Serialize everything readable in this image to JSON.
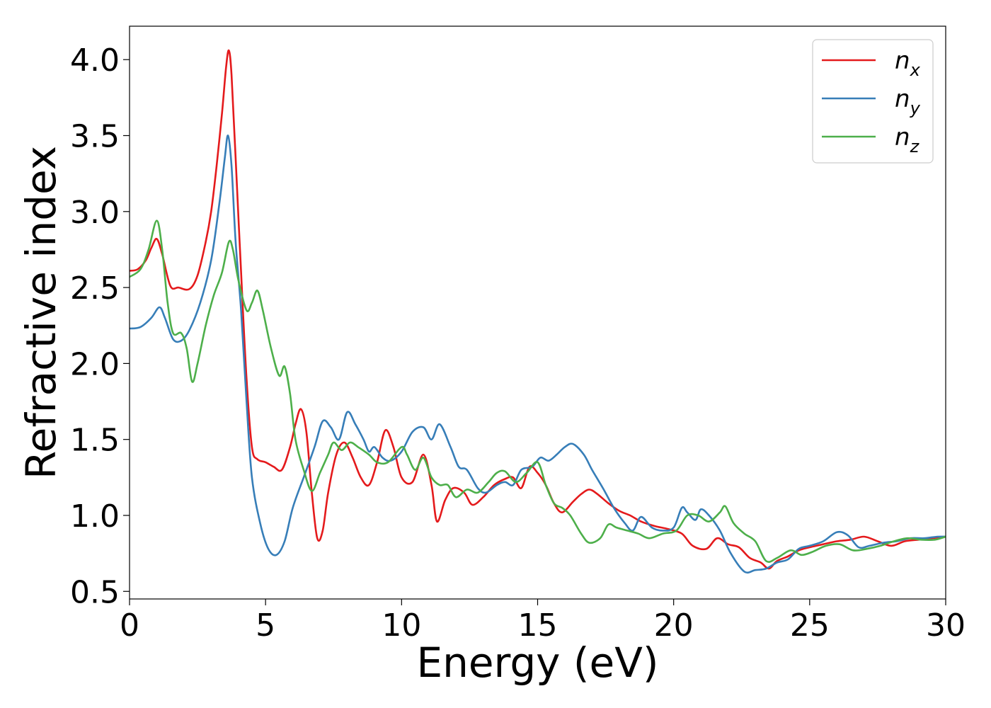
{
  "chart_data": {
    "type": "line",
    "title": "",
    "xlabel": "Energy (eV)",
    "ylabel": "Refractive index",
    "xlim": [
      0,
      30
    ],
    "ylim": [
      0.45,
      4.22
    ],
    "x_ticks": [
      "0",
      "5",
      "10",
      "15",
      "20",
      "25",
      "30"
    ],
    "y_ticks": [
      "0.5",
      "1.0",
      "1.5",
      "2.0",
      "2.5",
      "3.0",
      "3.5",
      "4.0"
    ],
    "grid": false,
    "legend_position": "top-right",
    "series": [
      {
        "name": "n_x",
        "legend_base": "n",
        "legend_sub": "x",
        "color": "#e41a1c",
        "points": [
          [
            0,
            2.61
          ],
          [
            0.3,
            2.62
          ],
          [
            0.6,
            2.68
          ],
          [
            0.8,
            2.76
          ],
          [
            1.0,
            2.82
          ],
          [
            1.2,
            2.72
          ],
          [
            1.5,
            2.51
          ],
          [
            1.8,
            2.5
          ],
          [
            2.2,
            2.49
          ],
          [
            2.5,
            2.58
          ],
          [
            2.8,
            2.8
          ],
          [
            3.0,
            3.0
          ],
          [
            3.2,
            3.3
          ],
          [
            3.4,
            3.65
          ],
          [
            3.55,
            3.95
          ],
          [
            3.65,
            4.06
          ],
          [
            3.75,
            3.9
          ],
          [
            3.9,
            3.35
          ],
          [
            4.1,
            2.6
          ],
          [
            4.3,
            1.9
          ],
          [
            4.5,
            1.45
          ],
          [
            4.7,
            1.37
          ],
          [
            5.0,
            1.35
          ],
          [
            5.3,
            1.32
          ],
          [
            5.6,
            1.3
          ],
          [
            5.9,
            1.45
          ],
          [
            6.1,
            1.6
          ],
          [
            6.3,
            1.7
          ],
          [
            6.5,
            1.55
          ],
          [
            6.7,
            1.15
          ],
          [
            6.9,
            0.85
          ],
          [
            7.1,
            0.9
          ],
          [
            7.3,
            1.15
          ],
          [
            7.6,
            1.4
          ],
          [
            7.9,
            1.48
          ],
          [
            8.2,
            1.38
          ],
          [
            8.5,
            1.25
          ],
          [
            8.8,
            1.2
          ],
          [
            9.1,
            1.35
          ],
          [
            9.4,
            1.56
          ],
          [
            9.7,
            1.45
          ],
          [
            10.0,
            1.25
          ],
          [
            10.4,
            1.22
          ],
          [
            10.8,
            1.4
          ],
          [
            11.1,
            1.2
          ],
          [
            11.3,
            0.96
          ],
          [
            11.6,
            1.1
          ],
          [
            11.9,
            1.18
          ],
          [
            12.3,
            1.15
          ],
          [
            12.6,
            1.07
          ],
          [
            13.0,
            1.12
          ],
          [
            13.4,
            1.2
          ],
          [
            13.8,
            1.24
          ],
          [
            14.1,
            1.25
          ],
          [
            14.4,
            1.18
          ],
          [
            14.7,
            1.32
          ],
          [
            15.0,
            1.28
          ],
          [
            15.3,
            1.2
          ],
          [
            15.6,
            1.08
          ],
          [
            15.9,
            1.02
          ],
          [
            16.3,
            1.09
          ],
          [
            16.6,
            1.14
          ],
          [
            16.9,
            1.17
          ],
          [
            17.2,
            1.14
          ],
          [
            17.6,
            1.08
          ],
          [
            18.0,
            1.03
          ],
          [
            18.4,
            1.0
          ],
          [
            18.8,
            0.96
          ],
          [
            19.3,
            0.93
          ],
          [
            19.8,
            0.91
          ],
          [
            20.3,
            0.88
          ],
          [
            20.7,
            0.8
          ],
          [
            21.2,
            0.78
          ],
          [
            21.6,
            0.85
          ],
          [
            22.0,
            0.81
          ],
          [
            22.4,
            0.79
          ],
          [
            22.8,
            0.72
          ],
          [
            23.2,
            0.69
          ],
          [
            23.5,
            0.65
          ],
          [
            23.8,
            0.7
          ],
          [
            24.2,
            0.73
          ],
          [
            24.6,
            0.77
          ],
          [
            25.0,
            0.79
          ],
          [
            25.5,
            0.81
          ],
          [
            26.0,
            0.83
          ],
          [
            26.5,
            0.84
          ],
          [
            27.0,
            0.86
          ],
          [
            27.5,
            0.83
          ],
          [
            28.0,
            0.8
          ],
          [
            28.5,
            0.83
          ],
          [
            29.0,
            0.84
          ],
          [
            29.5,
            0.85
          ],
          [
            30.0,
            0.86
          ]
        ]
      },
      {
        "name": "n_y",
        "legend_base": "n",
        "legend_sub": "y",
        "color": "#377eb8",
        "points": [
          [
            0,
            2.23
          ],
          [
            0.4,
            2.24
          ],
          [
            0.8,
            2.3
          ],
          [
            1.1,
            2.37
          ],
          [
            1.3,
            2.3
          ],
          [
            1.6,
            2.16
          ],
          [
            1.9,
            2.15
          ],
          [
            2.2,
            2.22
          ],
          [
            2.6,
            2.4
          ],
          [
            3.0,
            2.68
          ],
          [
            3.3,
            3.05
          ],
          [
            3.5,
            3.35
          ],
          [
            3.62,
            3.5
          ],
          [
            3.75,
            3.3
          ],
          [
            3.9,
            2.8
          ],
          [
            4.1,
            2.35
          ],
          [
            4.3,
            1.75
          ],
          [
            4.5,
            1.25
          ],
          [
            4.8,
            0.95
          ],
          [
            5.1,
            0.78
          ],
          [
            5.4,
            0.74
          ],
          [
            5.7,
            0.83
          ],
          [
            6.0,
            1.05
          ],
          [
            6.4,
            1.25
          ],
          [
            6.8,
            1.45
          ],
          [
            7.1,
            1.62
          ],
          [
            7.4,
            1.58
          ],
          [
            7.7,
            1.5
          ],
          [
            8.0,
            1.68
          ],
          [
            8.3,
            1.6
          ],
          [
            8.6,
            1.5
          ],
          [
            8.8,
            1.42
          ],
          [
            9.0,
            1.45
          ],
          [
            9.3,
            1.38
          ],
          [
            9.6,
            1.36
          ],
          [
            10.0,
            1.42
          ],
          [
            10.4,
            1.55
          ],
          [
            10.8,
            1.58
          ],
          [
            11.1,
            1.5
          ],
          [
            11.4,
            1.6
          ],
          [
            11.8,
            1.45
          ],
          [
            12.1,
            1.32
          ],
          [
            12.4,
            1.3
          ],
          [
            12.8,
            1.18
          ],
          [
            13.1,
            1.15
          ],
          [
            13.5,
            1.2
          ],
          [
            13.8,
            1.22
          ],
          [
            14.1,
            1.2
          ],
          [
            14.4,
            1.3
          ],
          [
            14.8,
            1.32
          ],
          [
            15.1,
            1.38
          ],
          [
            15.4,
            1.36
          ],
          [
            15.7,
            1.4
          ],
          [
            16.0,
            1.45
          ],
          [
            16.3,
            1.47
          ],
          [
            16.7,
            1.4
          ],
          [
            17.0,
            1.3
          ],
          [
            17.4,
            1.18
          ],
          [
            17.8,
            1.05
          ],
          [
            18.2,
            0.95
          ],
          [
            18.5,
            0.9
          ],
          [
            18.8,
            0.99
          ],
          [
            19.2,
            0.92
          ],
          [
            19.6,
            0.9
          ],
          [
            20.0,
            0.92
          ],
          [
            20.3,
            1.05
          ],
          [
            20.5,
            1.02
          ],
          [
            20.8,
            0.97
          ],
          [
            21.0,
            1.04
          ],
          [
            21.3,
            1.0
          ],
          [
            21.7,
            0.9
          ],
          [
            22.1,
            0.75
          ],
          [
            22.6,
            0.63
          ],
          [
            23.0,
            0.64
          ],
          [
            23.4,
            0.65
          ],
          [
            23.8,
            0.69
          ],
          [
            24.2,
            0.71
          ],
          [
            24.6,
            0.78
          ],
          [
            25.0,
            0.8
          ],
          [
            25.5,
            0.83
          ],
          [
            26.0,
            0.89
          ],
          [
            26.4,
            0.87
          ],
          [
            26.8,
            0.79
          ],
          [
            27.2,
            0.8
          ],
          [
            27.7,
            0.82
          ],
          [
            28.2,
            0.83
          ],
          [
            28.7,
            0.85
          ],
          [
            29.2,
            0.85
          ],
          [
            29.7,
            0.86
          ],
          [
            30.0,
            0.86
          ]
        ]
      },
      {
        "name": "n_z",
        "legend_base": "n",
        "legend_sub": "z",
        "color": "#4daf4a",
        "points": [
          [
            0,
            2.57
          ],
          [
            0.4,
            2.62
          ],
          [
            0.7,
            2.75
          ],
          [
            1.0,
            2.94
          ],
          [
            1.2,
            2.75
          ],
          [
            1.4,
            2.4
          ],
          [
            1.6,
            2.2
          ],
          [
            1.9,
            2.2
          ],
          [
            2.1,
            2.1
          ],
          [
            2.3,
            1.88
          ],
          [
            2.5,
            2.0
          ],
          [
            2.8,
            2.25
          ],
          [
            3.1,
            2.45
          ],
          [
            3.4,
            2.6
          ],
          [
            3.65,
            2.8
          ],
          [
            3.8,
            2.75
          ],
          [
            4.0,
            2.55
          ],
          [
            4.3,
            2.35
          ],
          [
            4.5,
            2.4
          ],
          [
            4.7,
            2.48
          ],
          [
            4.9,
            2.35
          ],
          [
            5.2,
            2.1
          ],
          [
            5.5,
            1.92
          ],
          [
            5.7,
            1.98
          ],
          [
            5.9,
            1.8
          ],
          [
            6.1,
            1.5
          ],
          [
            6.4,
            1.3
          ],
          [
            6.7,
            1.16
          ],
          [
            7.0,
            1.28
          ],
          [
            7.3,
            1.4
          ],
          [
            7.5,
            1.48
          ],
          [
            7.8,
            1.43
          ],
          [
            8.1,
            1.48
          ],
          [
            8.4,
            1.45
          ],
          [
            8.8,
            1.4
          ],
          [
            9.1,
            1.35
          ],
          [
            9.5,
            1.35
          ],
          [
            10.0,
            1.45
          ],
          [
            10.2,
            1.4
          ],
          [
            10.5,
            1.3
          ],
          [
            10.8,
            1.38
          ],
          [
            11.1,
            1.25
          ],
          [
            11.4,
            1.2
          ],
          [
            11.7,
            1.2
          ],
          [
            12.0,
            1.12
          ],
          [
            12.4,
            1.17
          ],
          [
            12.8,
            1.15
          ],
          [
            13.2,
            1.22
          ],
          [
            13.5,
            1.28
          ],
          [
            13.8,
            1.29
          ],
          [
            14.2,
            1.22
          ],
          [
            14.6,
            1.28
          ],
          [
            15.0,
            1.35
          ],
          [
            15.3,
            1.2
          ],
          [
            15.6,
            1.08
          ],
          [
            15.9,
            1.05
          ],
          [
            16.2,
            1.0
          ],
          [
            16.6,
            0.88
          ],
          [
            16.9,
            0.82
          ],
          [
            17.3,
            0.85
          ],
          [
            17.6,
            0.94
          ],
          [
            17.9,
            0.92
          ],
          [
            18.3,
            0.9
          ],
          [
            18.7,
            0.88
          ],
          [
            19.1,
            0.85
          ],
          [
            19.6,
            0.88
          ],
          [
            20.1,
            0.9
          ],
          [
            20.5,
            1.0
          ],
          [
            20.9,
            1.0
          ],
          [
            21.3,
            0.96
          ],
          [
            21.7,
            1.02
          ],
          [
            21.9,
            1.06
          ],
          [
            22.2,
            0.95
          ],
          [
            22.6,
            0.88
          ],
          [
            23.0,
            0.83
          ],
          [
            23.4,
            0.7
          ],
          [
            23.8,
            0.72
          ],
          [
            24.3,
            0.77
          ],
          [
            24.7,
            0.74
          ],
          [
            25.1,
            0.76
          ],
          [
            25.6,
            0.8
          ],
          [
            26.1,
            0.81
          ],
          [
            26.6,
            0.77
          ],
          [
            27.1,
            0.78
          ],
          [
            27.6,
            0.8
          ],
          [
            28.1,
            0.83
          ],
          [
            28.6,
            0.85
          ],
          [
            29.1,
            0.84
          ],
          [
            29.6,
            0.84
          ],
          [
            30.0,
            0.86
          ]
        ]
      }
    ]
  }
}
